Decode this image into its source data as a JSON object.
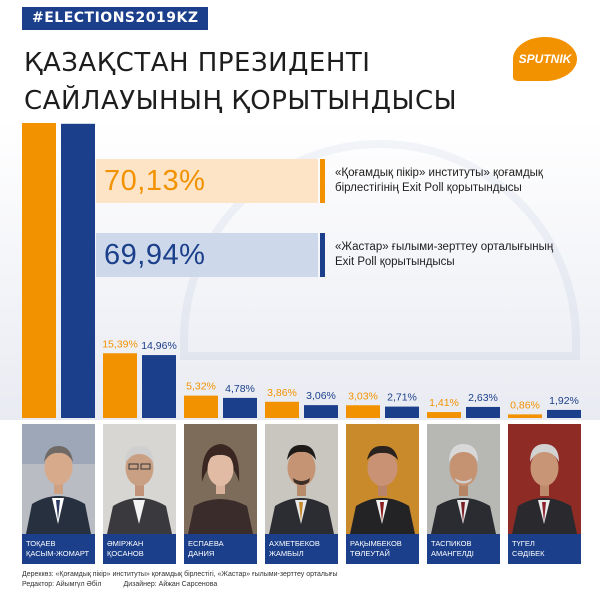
{
  "hashtag": "#ELECTIONS2019KZ",
  "title": {
    "line1": "ҚАЗАҚСТАН ПРЕЗИДЕНТІ",
    "line2": "САЙЛАУЫНЫҢ ҚОРЫТЫНДЫСЫ"
  },
  "logo": "SPUTNIK",
  "colors": {
    "orange": "#f39200",
    "blue": "#1b3f8b"
  },
  "polls": [
    {
      "value": "70,13%",
      "line1": "«Қоғамдық пікір» институты» қоғамдық",
      "line2": "бірлестігінің Exit Poll қорытындысы"
    },
    {
      "value": "69,94%",
      "line1": "«Жастар» ғылыми-зерттеу орталығының",
      "line2": "Exit Poll қорытындысы"
    }
  ],
  "chart_data": {
    "type": "bar",
    "categories": [
      "Тоқаев Қасым-Жомарт",
      "Әміржан Қосанов",
      "Еспаева Дания",
      "Ахметбеков Жамбыл",
      "Рақымбеков Төлеутай",
      "Таспиков Амангелді",
      "Түгел Сәдібек"
    ],
    "series": [
      {
        "values": [
          70.13,
          15.39,
          5.32,
          3.86,
          3.03,
          1.41,
          0.86
        ],
        "labels": [
          "",
          "15,39%",
          "5,32%",
          "3,86%",
          "3,03%",
          "1,41%",
          "0,86%"
        ],
        "color": "#f39200"
      },
      {
        "values": [
          69.94,
          14.96,
          4.78,
          3.06,
          2.71,
          2.63,
          1.92
        ],
        "labels": [
          "",
          "14,96%",
          "4,78%",
          "3,06%",
          "2,71%",
          "2,63%",
          "1,92%"
        ],
        "color": "#1b3f8b"
      }
    ],
    "ylim": [
      0,
      70.13
    ],
    "grid": false
  },
  "candidates": [
    {
      "line1": "Тоқаев",
      "line2": "Қасым-Жомарт"
    },
    {
      "line1": "Әміржан",
      "line2": "Қосанов"
    },
    {
      "line1": "Еспаева",
      "line2": "Дания"
    },
    {
      "line1": "Ахметбеков",
      "line2": "Жамбыл"
    },
    {
      "line1": "Рақымбеков",
      "line2": "Төлеутай"
    },
    {
      "line1": "Таспиков",
      "line2": "Амангелді"
    },
    {
      "line1": "Түгел",
      "line2": "Сәдібек"
    }
  ],
  "footer": {
    "sources": "Дереккөз: «Қоғамдық пікір» институты» қоғамдық бірлестігі, «Жастар» ғылыми-зерттеу орталығы",
    "editor": "Редактор: Айымгүл Әбіл",
    "designer": "Дизайнер: Айжан Сарсенова"
  }
}
